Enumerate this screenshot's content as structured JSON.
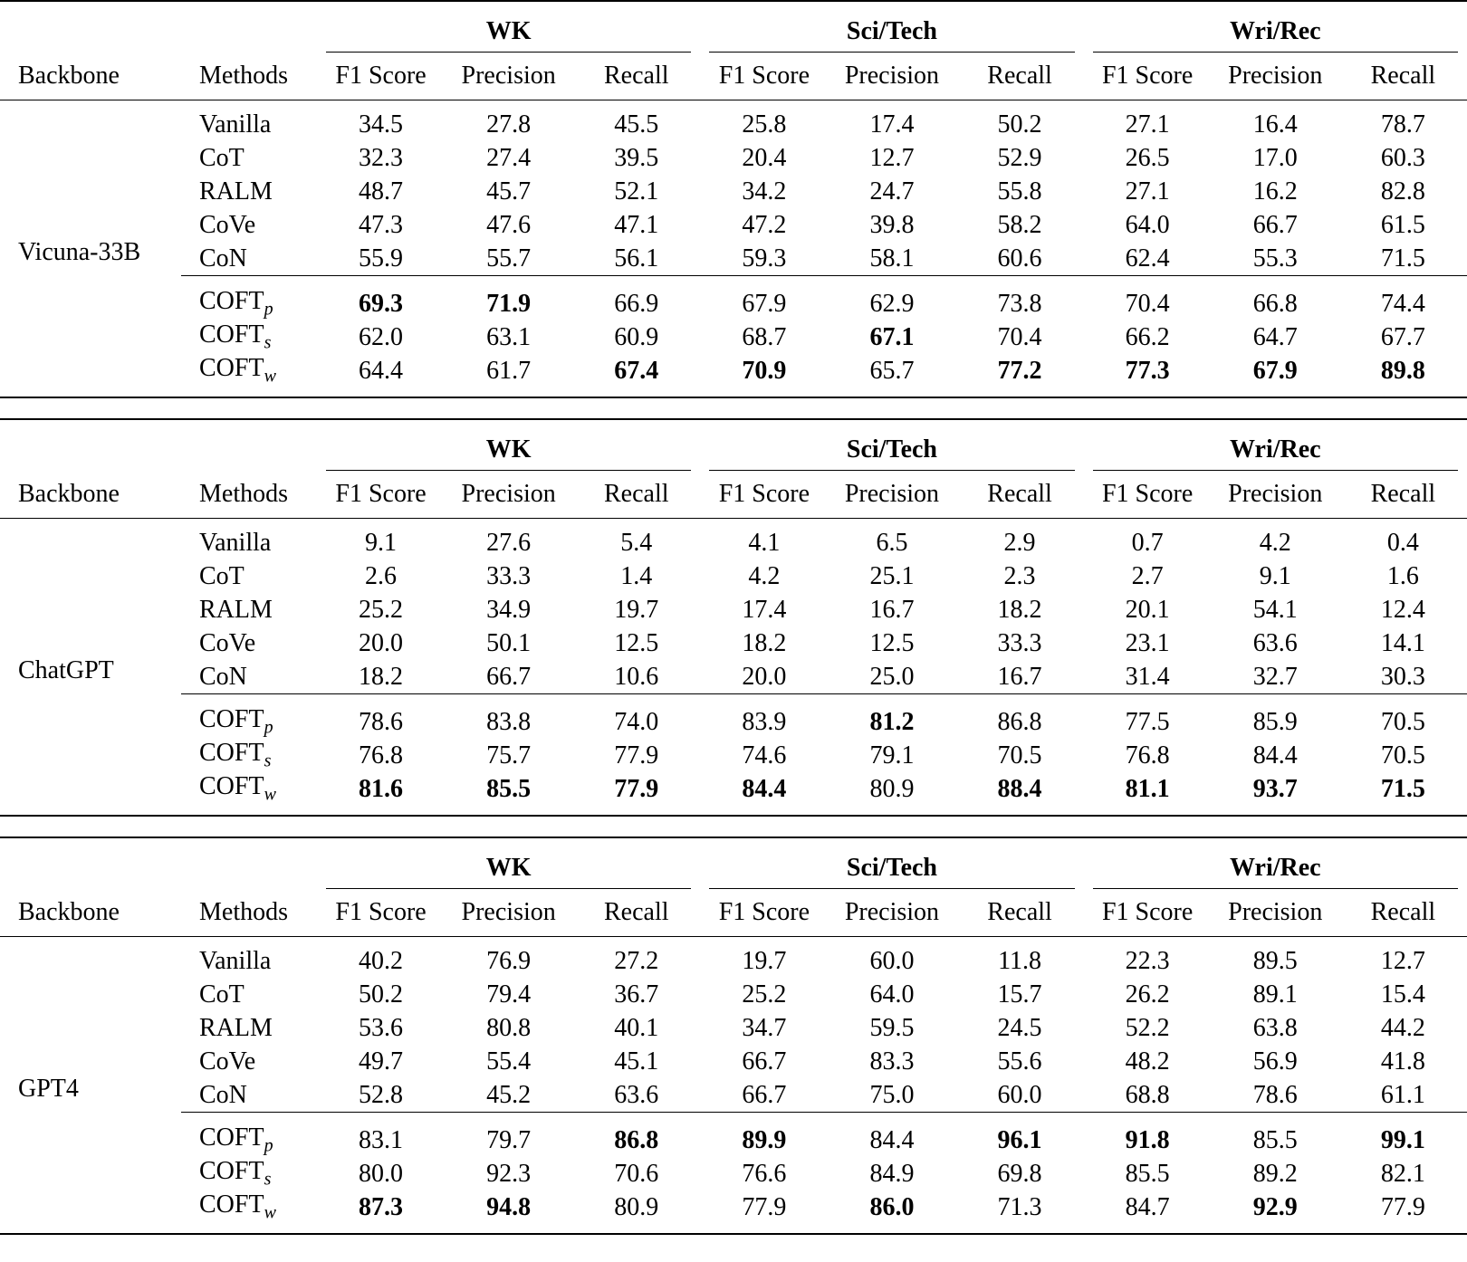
{
  "tables": [
    {
      "groups": [
        "WK",
        "Sci/Tech",
        "Wri/Rec"
      ],
      "columns": [
        "Backbone",
        "Methods"
      ],
      "metrics": [
        "F1 Score",
        "Precision",
        "Recall"
      ],
      "backbone": "Vicuna-33B",
      "baseline_rows": [
        {
          "method": "Vanilla",
          "values": [
            "34.5",
            "27.8",
            "45.5",
            "25.8",
            "17.4",
            "50.2",
            "27.1",
            "16.4",
            "78.7"
          ]
        },
        {
          "method": "CoT",
          "values": [
            "32.3",
            "27.4",
            "39.5",
            "20.4",
            "12.7",
            "52.9",
            "26.5",
            "17.0",
            "60.3"
          ]
        },
        {
          "method": "RALM",
          "values": [
            "48.7",
            "45.7",
            "52.1",
            "34.2",
            "24.7",
            "55.8",
            "27.1",
            "16.2",
            "82.8"
          ]
        },
        {
          "method": "CoVe",
          "values": [
            "47.3",
            "47.6",
            "47.1",
            "47.2",
            "39.8",
            "58.2",
            "64.0",
            "66.7",
            "61.5"
          ]
        },
        {
          "method": "CoN",
          "values": [
            "55.9",
            "55.7",
            "56.1",
            "59.3",
            "58.1",
            "60.6",
            "62.4",
            "55.3",
            "71.5"
          ]
        }
      ],
      "coft_rows": [
        {
          "method": "COFT",
          "sub": "p",
          "values": [
            "69.3",
            "71.9",
            "66.9",
            "67.9",
            "62.9",
            "73.8",
            "70.4",
            "66.8",
            "74.4"
          ],
          "bold": [
            0,
            1
          ]
        },
        {
          "method": "COFT",
          "sub": "s",
          "values": [
            "62.0",
            "63.1",
            "60.9",
            "68.7",
            "67.1",
            "70.4",
            "66.2",
            "64.7",
            "67.7"
          ],
          "bold": [
            4
          ]
        },
        {
          "method": "COFT",
          "sub": "w",
          "values": [
            "64.4",
            "61.7",
            "67.4",
            "70.9",
            "65.7",
            "77.2",
            "77.3",
            "67.9",
            "89.8"
          ],
          "bold": [
            2,
            3,
            5,
            6,
            7,
            8
          ]
        }
      ]
    },
    {
      "groups": [
        "WK",
        "Sci/Tech",
        "Wri/Rec"
      ],
      "columns": [
        "Backbone",
        "Methods"
      ],
      "metrics": [
        "F1 Score",
        "Precision",
        "Recall"
      ],
      "backbone": "ChatGPT",
      "baseline_rows": [
        {
          "method": "Vanilla",
          "values": [
            "9.1",
            "27.6",
            "5.4",
            "4.1",
            "6.5",
            "2.9",
            "0.7",
            "4.2",
            "0.4"
          ]
        },
        {
          "method": "CoT",
          "values": [
            "2.6",
            "33.3",
            "1.4",
            "4.2",
            "25.1",
            "2.3",
            "2.7",
            "9.1",
            "1.6"
          ]
        },
        {
          "method": "RALM",
          "values": [
            "25.2",
            "34.9",
            "19.7",
            "17.4",
            "16.7",
            "18.2",
            "20.1",
            "54.1",
            "12.4"
          ]
        },
        {
          "method": "CoVe",
          "values": [
            "20.0",
            "50.1",
            "12.5",
            "18.2",
            "12.5",
            "33.3",
            "23.1",
            "63.6",
            "14.1"
          ]
        },
        {
          "method": "CoN",
          "values": [
            "18.2",
            "66.7",
            "10.6",
            "20.0",
            "25.0",
            "16.7",
            "31.4",
            "32.7",
            "30.3"
          ]
        }
      ],
      "coft_rows": [
        {
          "method": "COFT",
          "sub": "p",
          "values": [
            "78.6",
            "83.8",
            "74.0",
            "83.9",
            "81.2",
            "86.8",
            "77.5",
            "85.9",
            "70.5"
          ],
          "bold": [
            4
          ]
        },
        {
          "method": "COFT",
          "sub": "s",
          "values": [
            "76.8",
            "75.7",
            "77.9",
            "74.6",
            "79.1",
            "70.5",
            "76.8",
            "84.4",
            "70.5"
          ]
        },
        {
          "method": "COFT",
          "sub": "w",
          "values": [
            "81.6",
            "85.5",
            "77.9",
            "84.4",
            "80.9",
            "88.4",
            "81.1",
            "93.7",
            "71.5"
          ],
          "bold": [
            0,
            1,
            2,
            3,
            5,
            6,
            7,
            8
          ]
        }
      ]
    },
    {
      "groups": [
        "WK",
        "Sci/Tech",
        "Wri/Rec"
      ],
      "columns": [
        "Backbone",
        "Methods"
      ],
      "metrics": [
        "F1 Score",
        "Precision",
        "Recall"
      ],
      "backbone": "GPT4",
      "baseline_rows": [
        {
          "method": "Vanilla",
          "values": [
            "40.2",
            "76.9",
            "27.2",
            "19.7",
            "60.0",
            "11.8",
            "22.3",
            "89.5",
            "12.7"
          ]
        },
        {
          "method": "CoT",
          "values": [
            "50.2",
            "79.4",
            "36.7",
            "25.2",
            "64.0",
            "15.7",
            "26.2",
            "89.1",
            "15.4"
          ]
        },
        {
          "method": "RALM",
          "values": [
            "53.6",
            "80.8",
            "40.1",
            "34.7",
            "59.5",
            "24.5",
            "52.2",
            "63.8",
            "44.2"
          ]
        },
        {
          "method": "CoVe",
          "values": [
            "49.7",
            "55.4",
            "45.1",
            "66.7",
            "83.3",
            "55.6",
            "48.2",
            "56.9",
            "41.8"
          ]
        },
        {
          "method": "CoN",
          "values": [
            "52.8",
            "45.2",
            "63.6",
            "66.7",
            "75.0",
            "60.0",
            "68.8",
            "78.6",
            "61.1"
          ]
        }
      ],
      "coft_rows": [
        {
          "method": "COFT",
          "sub": "p",
          "values": [
            "83.1",
            "79.7",
            "86.8",
            "89.9",
            "84.4",
            "96.1",
            "91.8",
            "85.5",
            "99.1"
          ],
          "bold": [
            2,
            3,
            5,
            6,
            8
          ]
        },
        {
          "method": "COFT",
          "sub": "s",
          "values": [
            "80.0",
            "92.3",
            "70.6",
            "76.6",
            "84.9",
            "69.8",
            "85.5",
            "89.2",
            "82.1"
          ]
        },
        {
          "method": "COFT",
          "sub": "w",
          "values": [
            "87.3",
            "94.8",
            "80.9",
            "77.9",
            "86.0",
            "71.3",
            "84.7",
            "92.9",
            "77.9"
          ],
          "bold": [
            0,
            1,
            4,
            7
          ]
        }
      ]
    }
  ]
}
